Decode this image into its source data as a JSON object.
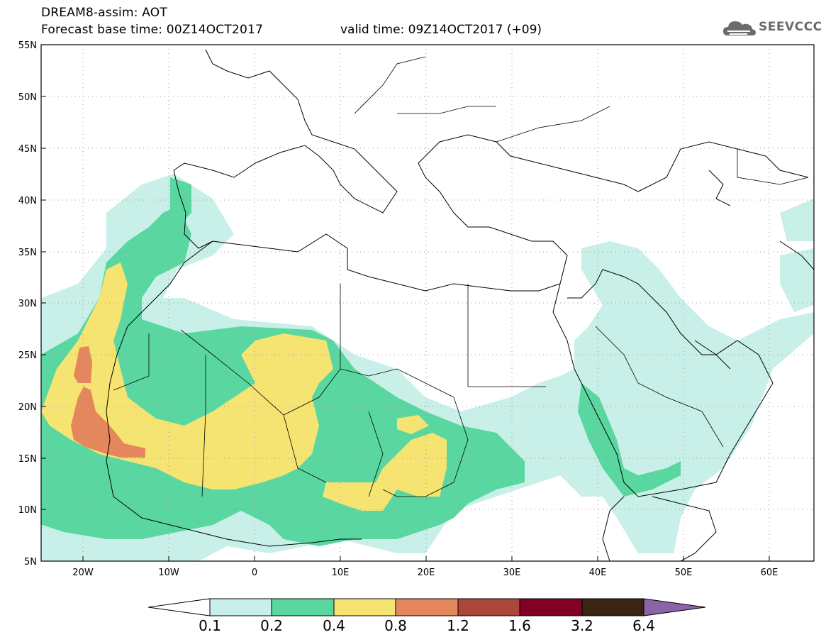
{
  "header": {
    "title": "DREAM8-assim: AOT",
    "base_time": "Forecast base time: 00Z14OCT2017",
    "valid_time": "valid time: 09Z14OCT2017 (+09)"
  },
  "logo": {
    "text": "SEEVCCC",
    "icon": "cloud-icon"
  },
  "map": {
    "lat_labels": [
      "55N",
      "50N",
      "45N",
      "40N",
      "35N",
      "30N",
      "25N",
      "20N",
      "15N",
      "10N",
      "5N"
    ],
    "lon_labels": [
      "20W",
      "10W",
      "0",
      "10E",
      "20E",
      "30E",
      "40E",
      "50E",
      "60E"
    ],
    "grid": "dotted",
    "lat_range": [
      5,
      55
    ],
    "lon_range": [
      -25,
      65
    ]
  },
  "colorbar": {
    "labels": [
      "0.1",
      "0.2",
      "0.4",
      "0.8",
      "1.2",
      "1.6",
      "3.2",
      "6.4"
    ],
    "colors": [
      "#c8f0e8",
      "#5ad7a0",
      "#f6e472",
      "#e4875c",
      "#a9473a",
      "#800026",
      "#3b2414",
      "#8b64a8"
    ]
  }
}
